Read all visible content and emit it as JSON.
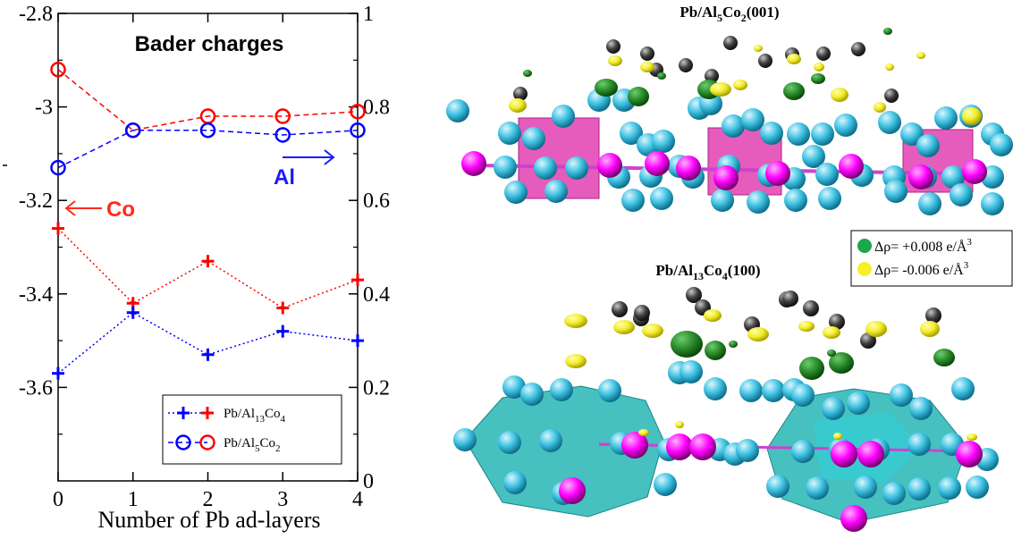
{
  "chart_data": {
    "type": "line",
    "title": "Bader charges",
    "xlabel": "Number of Pb ad-layers",
    "x": [
      0,
      1,
      2,
      3,
      4
    ],
    "x_ticks": [
      "0",
      "1",
      "2",
      "3",
      "4"
    ],
    "ylim_left": [
      -3.8,
      -2.8
    ],
    "yticks_left": [
      "-2.8",
      "-3",
      "-3.2",
      "-3.4",
      "-3.6"
    ],
    "ylim_right": [
      0,
      1
    ],
    "yticks_right": [
      "1",
      "0.8",
      "0.6",
      "0.4",
      "0.2",
      "0"
    ],
    "axis_annotations": [
      {
        "text": "Co",
        "color": "#ff2a1a",
        "points_to": "left axis"
      },
      {
        "text": "Al",
        "color": "#1a1aff",
        "points_to": "right axis"
      }
    ],
    "series": [
      {
        "system": "Pb/Al13Co4",
        "element": "Co",
        "axis": "left",
        "marker": "plus",
        "line": "dotted",
        "color": "#ff0000",
        "values": [
          -3.26,
          -3.42,
          -3.33,
          -3.43,
          -3.37
        ]
      },
      {
        "system": "Pb/Al13Co4",
        "element": "Al",
        "axis": "right",
        "marker": "plus",
        "line": "dotted",
        "color": "#0000ff",
        "values": [
          0.23,
          0.36,
          0.27,
          0.32,
          0.3
        ]
      },
      {
        "system": "Pb/Al5Co2",
        "element": "Co",
        "axis": "left",
        "marker": "circle",
        "line": "dashed",
        "color": "#ff0000",
        "values": [
          -2.92,
          -3.05,
          -3.02,
          -3.02,
          -3.01
        ]
      },
      {
        "system": "Pb/Al5Co2",
        "element": "Al",
        "axis": "right",
        "marker": "circle",
        "line": "dashed",
        "color": "#0000ff",
        "values": [
          0.67,
          0.75,
          0.75,
          0.74,
          0.75
        ]
      }
    ],
    "legend": {
      "placement": "bottom-right",
      "entries": [
        {
          "label_main": "Pb/Al",
          "sub1": "13",
          "mid": "Co",
          "sub2": "4",
          "marker": "plus"
        },
        {
          "label_main": "Pb/Al",
          "sub1": "5",
          "mid": "Co",
          "sub2": "2",
          "marker": "circle"
        }
      ]
    }
  },
  "render_panel": {
    "top_title": {
      "main": "Pb/Al",
      "sub1": "5",
      "mid": "Co",
      "sub2": "2",
      "tail": "(001)"
    },
    "bottom_title": {
      "main": "Pb/Al",
      "sub1": "13",
      "mid": "Co",
      "sub2": "4",
      "tail": "(100)"
    },
    "density_legend": [
      {
        "text": "Δρ= +0.008 e/Å",
        "sup": "3",
        "color": "#1aa84a"
      },
      {
        "text": "Δρ= -0.006 e/Å",
        "sup": "3",
        "color": "#f5f02a"
      }
    ],
    "atom_colors": {
      "Al": "#3cc0e0",
      "Co": "#ff00ff",
      "Pb": "#404040"
    }
  }
}
